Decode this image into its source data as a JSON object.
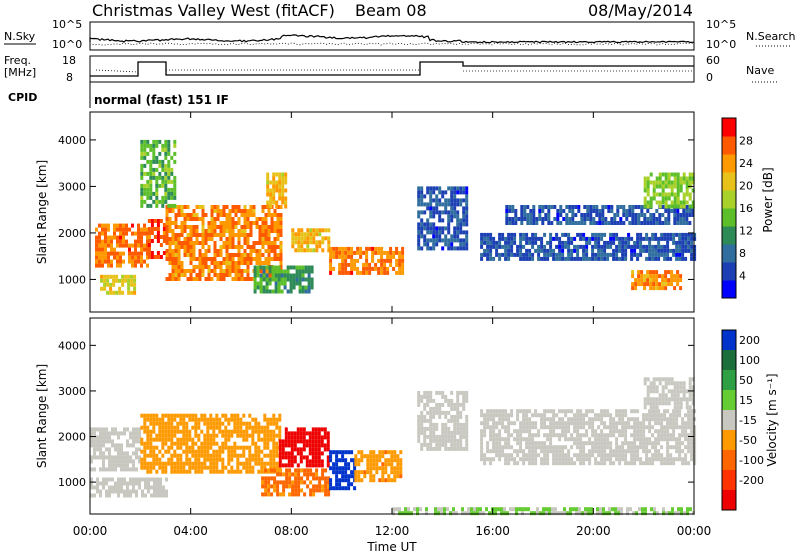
{
  "header": {
    "title": "Christmas Valley West (fitACF)",
    "beam": "Beam 08",
    "date": "08/May/2014"
  },
  "top_panels": {
    "nsky_label": "N.Sky",
    "nsky_ticks": [
      "10^5",
      "10^0"
    ],
    "nsearch_label": "N.Search",
    "nsearch_ticks": [
      "10^5",
      "10^0"
    ],
    "freq_label": "Freq.",
    "freq_unit": "[MHz]",
    "freq_ticks": [
      "18",
      "8"
    ],
    "nave_label": "Nave",
    "nave_ticks": [
      "60",
      "0"
    ],
    "cpid_label": "CPID",
    "cpid_value": "normal (fast) 151 IF"
  },
  "chart_data": [
    {
      "type": "heatmap",
      "panel": "power",
      "ylabel": "Slant Range [km]",
      "yticks": [
        "1000",
        "2000",
        "3000",
        "4000"
      ],
      "ylim": [
        300,
        4600
      ],
      "xlim": [
        "00:00",
        "24:00"
      ],
      "colorbar": {
        "label": "Power [dB]",
        "ticks": [
          "4",
          "8",
          "12",
          "16",
          "20",
          "24",
          "28"
        ],
        "range": [
          0,
          32
        ],
        "colors": [
          "#0000ff",
          "#1c3fb4",
          "#2f6e9e",
          "#2e8b57",
          "#5cbf2a",
          "#a8d12a",
          "#e8c21a",
          "#ff9900",
          "#ff5a00",
          "#ff0000"
        ]
      },
      "regions": [
        {
          "t": [
            0.2,
            2.3
          ],
          "r": [
            1300,
            2200
          ],
          "p": 26
        },
        {
          "t": [
            2.3,
            3.0
          ],
          "r": [
            1500,
            2300
          ],
          "p": 28
        },
        {
          "t": [
            3.0,
            7.6
          ],
          "r": [
            1000,
            2600
          ],
          "p": 25
        },
        {
          "t": [
            0.4,
            1.8
          ],
          "r": [
            700,
            1100
          ],
          "p": 20
        },
        {
          "t": [
            2.0,
            3.4
          ],
          "r": [
            2600,
            4000
          ],
          "p": 14
        },
        {
          "t": [
            7.0,
            7.8
          ],
          "r": [
            2600,
            3300
          ],
          "p": 22
        },
        {
          "t": [
            6.5,
            8.8
          ],
          "r": [
            700,
            1300
          ],
          "p": 12
        },
        {
          "t": [
            8.0,
            9.5
          ],
          "r": [
            1600,
            2100
          ],
          "p": 22
        },
        {
          "t": [
            9.5,
            12.4
          ],
          "r": [
            1100,
            1700
          ],
          "p": 26
        },
        {
          "t": [
            13.0,
            15.0
          ],
          "r": [
            1700,
            3000
          ],
          "p": 6
        },
        {
          "t": [
            15.5,
            24.0
          ],
          "r": [
            1400,
            2000
          ],
          "p": 6
        },
        {
          "t": [
            16.5,
            24.0
          ],
          "r": [
            2200,
            2600
          ],
          "p": 6
        },
        {
          "t": [
            22.0,
            24.0
          ],
          "r": [
            2600,
            3300
          ],
          "p": 16
        },
        {
          "t": [
            21.5,
            23.5
          ],
          "r": [
            800,
            1200
          ],
          "p": 24
        }
      ]
    },
    {
      "type": "heatmap",
      "panel": "velocity",
      "ylabel": "Slant Range [km]",
      "yticks": [
        "1000",
        "2000",
        "3000",
        "4000"
      ],
      "ylim": [
        300,
        4600
      ],
      "xlim": [
        "00:00",
        "24:00"
      ],
      "colorbar": {
        "label": "Velocity [m s⁻¹]",
        "ticks": [
          "200",
          "100",
          "50",
          "15",
          "-15",
          "-50",
          "-100",
          "-200"
        ],
        "range": [
          -250,
          250
        ],
        "colors": [
          "#0033cc",
          "#1c6e3a",
          "#2ea043",
          "#66cc33",
          "#c8c8c0",
          "#ff9900",
          "#ff6600",
          "#ff3300",
          "#ee0000"
        ]
      },
      "regions": [
        {
          "t": [
            0.0,
            2.0
          ],
          "r": [
            1300,
            2200
          ],
          "v": 0
        },
        {
          "t": [
            0.0,
            3.0
          ],
          "r": [
            700,
            1100
          ],
          "v": 0
        },
        {
          "t": [
            2.0,
            7.5
          ],
          "r": [
            1200,
            2500
          ],
          "v": -60
        },
        {
          "t": [
            6.8,
            9.5
          ],
          "r": [
            700,
            1300
          ],
          "v": -90
        },
        {
          "t": [
            7.5,
            9.5
          ],
          "r": [
            1400,
            2200
          ],
          "v": -230
        },
        {
          "t": [
            9.5,
            10.5
          ],
          "r": [
            900,
            1700
          ],
          "v": 230
        },
        {
          "t": [
            10.5,
            12.4
          ],
          "r": [
            1000,
            1700
          ],
          "v": -70
        },
        {
          "t": [
            13.0,
            15.0
          ],
          "r": [
            1700,
            3000
          ],
          "v": 0
        },
        {
          "t": [
            15.5,
            24.0
          ],
          "r": [
            1400,
            2600
          ],
          "v": 0
        },
        {
          "t": [
            22.0,
            24.0
          ],
          "r": [
            2600,
            3300
          ],
          "v": 0
        },
        {
          "t": [
            12.0,
            24.0
          ],
          "r": [
            300,
            450
          ],
          "v": 30
        }
      ]
    }
  ],
  "xaxis": {
    "label": "Time UT",
    "ticks": [
      "00:00",
      "04:00",
      "08:00",
      "12:00",
      "16:00",
      "20:00",
      "00:00"
    ]
  }
}
